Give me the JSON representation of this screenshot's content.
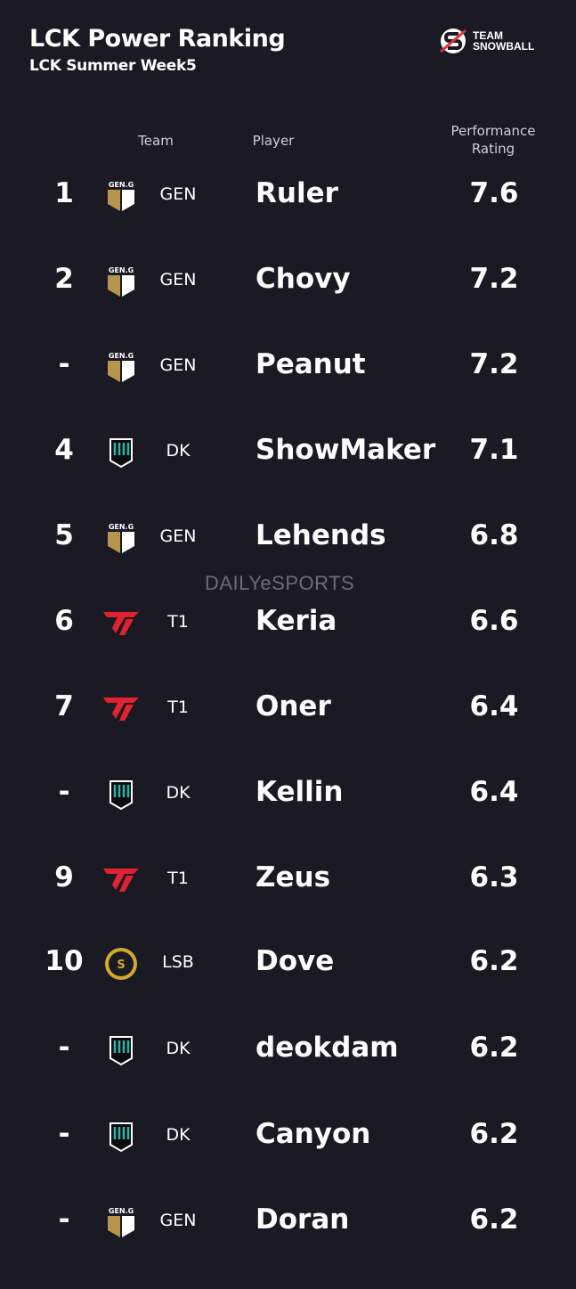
{
  "header": {
    "title": "LCK Power Ranking",
    "subtitle": "LCK Summer Week5"
  },
  "brand": {
    "line1": "TEAM",
    "line2": "SNOWBALL",
    "accent": "#e0303a"
  },
  "columns": {
    "team": "Team",
    "player": "Player",
    "rating_line1": "Performance",
    "rating_line2": "Rating"
  },
  "watermark": "DAILYeSPORTS",
  "team_colors": {
    "GEN": "#b8954a",
    "DK": "#2ab5a5",
    "T1": "#e2232f",
    "LSB": "#d4a92a"
  },
  "rows": [
    {
      "rank": "1",
      "team": "GEN",
      "player": "Ruler",
      "rating": "7.6"
    },
    {
      "rank": "2",
      "team": "GEN",
      "player": "Chovy",
      "rating": "7.2"
    },
    {
      "rank": "-",
      "team": "GEN",
      "player": "Peanut",
      "rating": "7.2"
    },
    {
      "rank": "4",
      "team": "DK",
      "player": "ShowMaker",
      "rating": "7.1"
    },
    {
      "rank": "5",
      "team": "GEN",
      "player": "Lehends",
      "rating": "6.8"
    },
    {
      "rank": "6",
      "team": "T1",
      "player": "Keria",
      "rating": "6.6"
    },
    {
      "rank": "7",
      "team": "T1",
      "player": "Oner",
      "rating": "6.4"
    },
    {
      "rank": "-",
      "team": "DK",
      "player": "Kellin",
      "rating": "6.4"
    },
    {
      "rank": "9",
      "team": "T1",
      "player": "Zeus",
      "rating": "6.3"
    },
    {
      "rank": "10",
      "team": "LSB",
      "player": "Dove",
      "rating": "6.2"
    },
    {
      "rank": "-",
      "team": "DK",
      "player": "deokdam",
      "rating": "6.2"
    },
    {
      "rank": "-",
      "team": "DK",
      "player": "Canyon",
      "rating": "6.2"
    },
    {
      "rank": "-",
      "team": "GEN",
      "player": "Doran",
      "rating": "6.2"
    }
  ]
}
